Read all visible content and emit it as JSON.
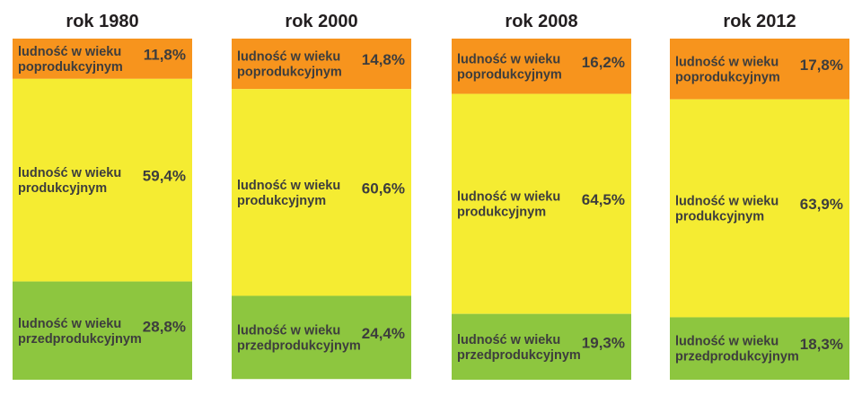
{
  "chart_data": {
    "type": "bar",
    "stacked": true,
    "orientation": "vertical",
    "categories": [
      "rok 1980",
      "rok 2000",
      "rok 2008",
      "rok 2012"
    ],
    "series": [
      {
        "name": "ludność w wieku poprodukcyjnym",
        "label_lines": [
          "ludność w wieku",
          "poprodukcyjnym"
        ],
        "values": [
          11.8,
          14.8,
          16.2,
          17.8
        ],
        "labels": [
          "11,8%",
          "14,8%",
          "16,2%",
          "17,8%"
        ],
        "color": "#f7941d"
      },
      {
        "name": "ludność w wieku produkcyjnym",
        "label_lines": [
          "ludność w wieku",
          "produkcyjnym"
        ],
        "values": [
          59.4,
          60.6,
          64.5,
          63.9
        ],
        "labels": [
          "59,4%",
          "60,6%",
          "64,5%",
          "63,9%"
        ],
        "color": "#f5ec32"
      },
      {
        "name": "ludność w wieku przedprodukcyjnym",
        "label_lines": [
          "ludność w wieku",
          "przedprodukcyjnym"
        ],
        "values": [
          28.8,
          24.4,
          19.3,
          18.3
        ],
        "labels": [
          "28,8%",
          "24,4%",
          "19,3%",
          "18,3%"
        ],
        "color": "#8dc63f"
      }
    ],
    "ylim": [
      0,
      100
    ],
    "grid": false,
    "legend": "none"
  }
}
